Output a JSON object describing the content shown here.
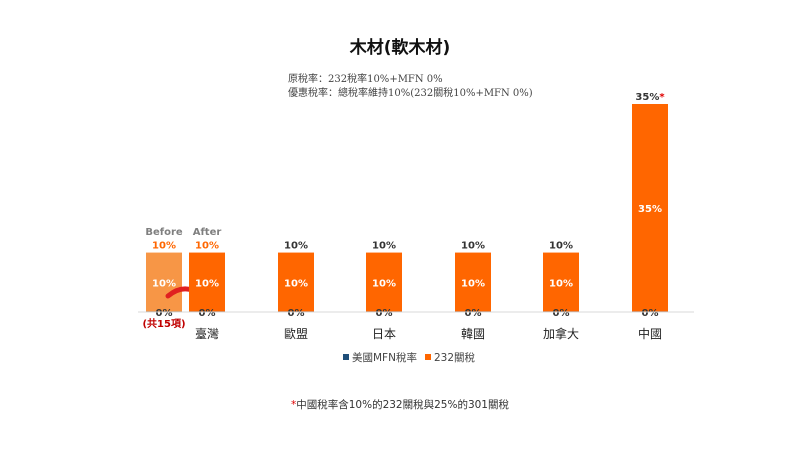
{
  "chart_data": {
    "type": "bar",
    "title": "木材(軟木材)",
    "notes": [
      "原稅率：232稅率10%+MFN 0%",
      "優惠稅率：總稅率維持10%(232關稅10%+MFN 0%)"
    ],
    "ylim": [
      0,
      35
    ],
    "categories": [
      "臺灣",
      "歐盟",
      "日本",
      "韓國",
      "加拿大",
      "中國"
    ],
    "series": [
      {
        "name": "美國MFN稅率",
        "color": "#1f4e79",
        "values": [
          0,
          0,
          0,
          0,
          0,
          0
        ],
        "labels": [
          "0%",
          "0%",
          "0%",
          "0%",
          "0%",
          "0%"
        ]
      },
      {
        "name": "232關稅",
        "color": "#ff6600",
        "values": [
          10,
          10,
          10,
          10,
          10,
          35
        ],
        "labels": [
          "10%",
          "10%",
          "10%",
          "10%",
          "10%",
          "35%"
        ]
      }
    ],
    "totals": [
      "10%",
      "10%",
      "10%",
      "10%",
      "10%",
      "35%"
    ],
    "taiwan_before": {
      "label": "Before",
      "color": "#f79646",
      "total": "10%",
      "bar_label": "10%",
      "zero_label": "0%",
      "sublabel": "(共15項)"
    },
    "taiwan_after_label": "After",
    "asterisk": "*",
    "footnote": "中國稅率含10%的232關稅與25%的301關稅",
    "legend_position": "bottom",
    "grid": false
  }
}
